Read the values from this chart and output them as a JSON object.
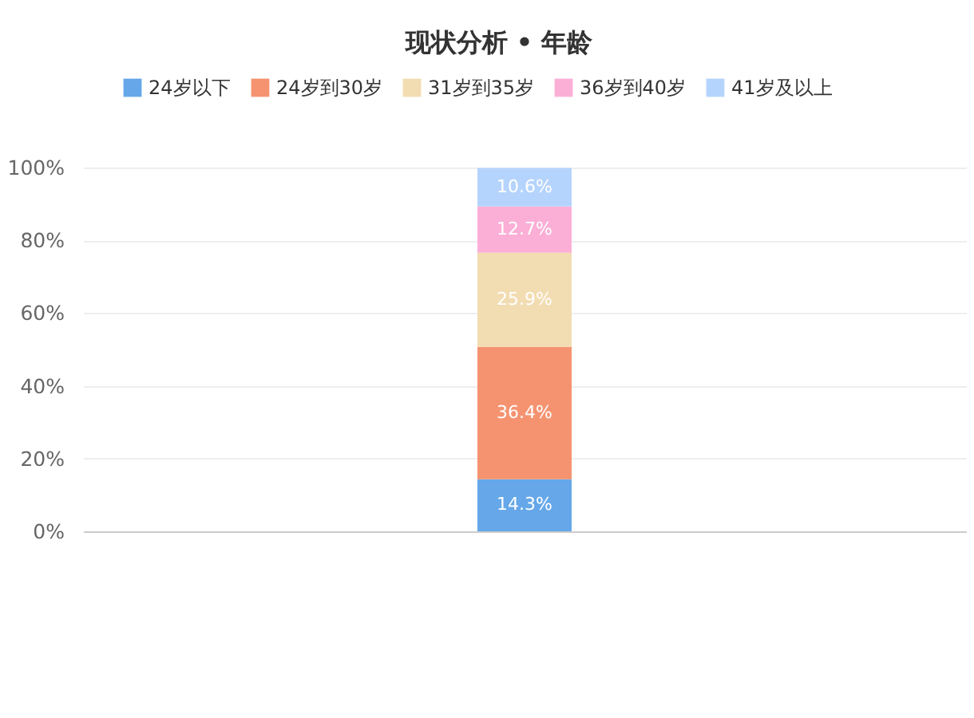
{
  "chart_data": {
    "type": "bar",
    "title": "现状分析 • 年龄",
    "categories": [
      null
    ],
    "stacked": true,
    "series": [
      {
        "name": "24岁以下",
        "color": "#65a7e9",
        "values": [
          14.3
        ],
        "value_labels": [
          "14.3%"
        ]
      },
      {
        "name": "24岁到30岁",
        "color": "#f59370",
        "values": [
          36.4
        ],
        "value_labels": [
          "36.4%"
        ]
      },
      {
        "name": "31岁到35岁",
        "color": "#f2dcb1",
        "values": [
          25.9
        ],
        "value_labels": [
          "25.9%"
        ]
      },
      {
        "name": "36岁到40岁",
        "color": "#fbafd6",
        "values": [
          12.7
        ],
        "value_labels": [
          "12.7%"
        ]
      },
      {
        "name": "41岁及以上",
        "color": "#b5d4fd",
        "values": [
          10.6
        ],
        "value_labels": [
          "10.6%"
        ]
      }
    ],
    "ylim": [
      0,
      100
    ],
    "yticks": [
      {
        "value": 0,
        "label": "0%"
      },
      {
        "value": 20,
        "label": "20%"
      },
      {
        "value": 40,
        "label": "40%"
      },
      {
        "value": 60,
        "label": "60%"
      },
      {
        "value": 80,
        "label": "80%"
      },
      {
        "value": 100,
        "label": "100%"
      }
    ],
    "grid": "y",
    "legend": "top"
  }
}
